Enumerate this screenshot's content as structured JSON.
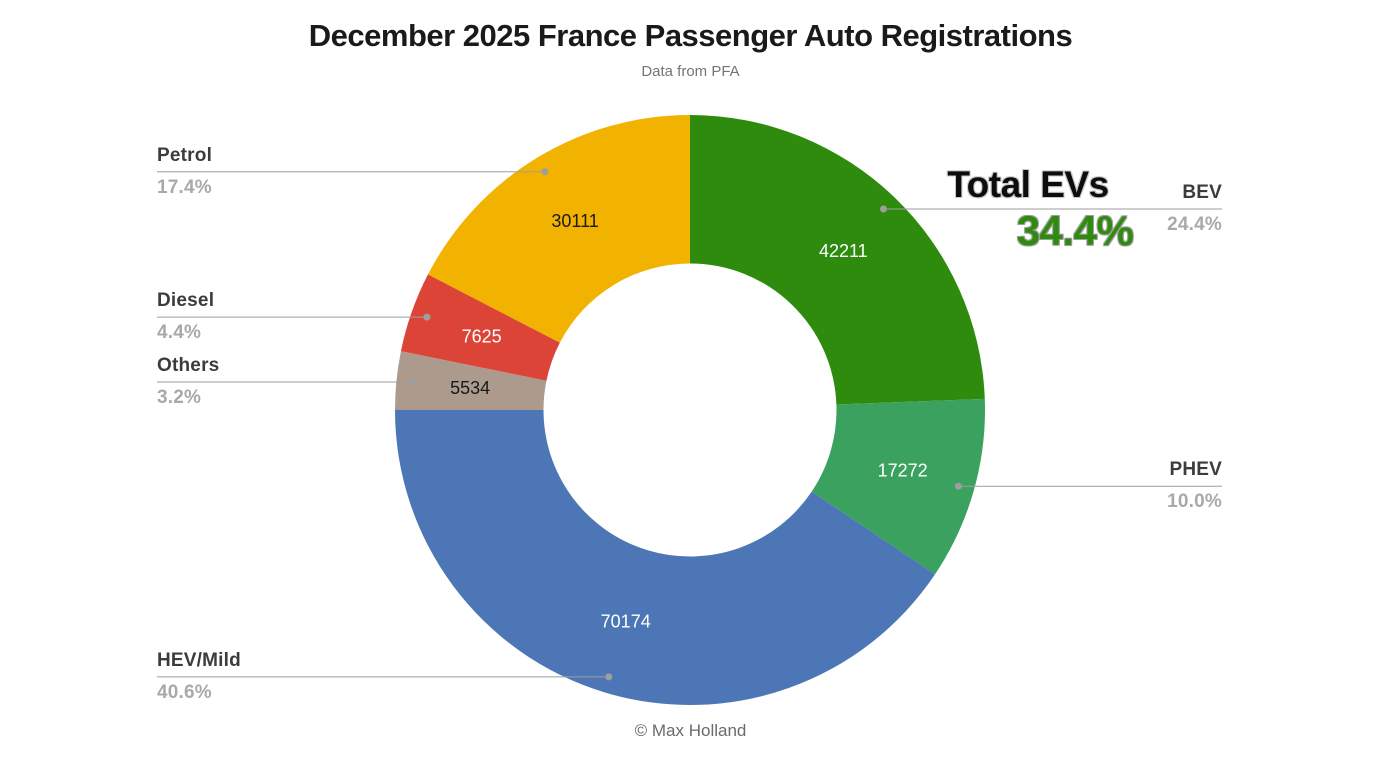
{
  "chart_data": {
    "type": "pie",
    "donut": true,
    "title": "December 2025 France Passenger Auto Registrations",
    "subtitle": "Data from PFA",
    "credit": "© Max Holland",
    "start_angle_deg": 0,
    "direction": "clockwise",
    "legend_position": "callout-labels",
    "annotation": {
      "label": "Total EVs",
      "pct": "34.4%",
      "color": "#2E8B0E"
    },
    "segments": [
      {
        "label": "BEV",
        "value": 42211,
        "pct": "24.4%",
        "pct_num": 24.4,
        "color": "#2E8B0E",
        "value_text_color": "#ffffff",
        "callout_side": "right"
      },
      {
        "label": "PHEV",
        "value": 17272,
        "pct": "10.0%",
        "pct_num": 10.0,
        "color": "#3AA25E",
        "value_text_color": "#ffffff",
        "callout_side": "right"
      },
      {
        "label": "HEV/Mild",
        "value": 70174,
        "pct": "40.6%",
        "pct_num": 40.6,
        "color": "#4C76B5",
        "value_text_color": "#ffffff",
        "callout_side": "left"
      },
      {
        "label": "Others",
        "value": 5534,
        "pct": "3.2%",
        "pct_num": 3.2,
        "color": "#AC9B8D",
        "value_text_color": "#1a1a1a",
        "callout_side": "left"
      },
      {
        "label": "Diesel",
        "value": 7625,
        "pct": "4.4%",
        "pct_num": 4.4,
        "color": "#DB4437",
        "value_text_color": "#ffffff",
        "callout_side": "left"
      },
      {
        "label": "Petrol",
        "value": 30111,
        "pct": "17.4%",
        "pct_num": 17.4,
        "color": "#F2B200",
        "value_text_color": "#1a1a1a",
        "callout_side": "left"
      }
    ],
    "style": {
      "callout_line_color": "#9e9e9e",
      "callout_name_color": "#3c3c3c",
      "callout_pct_color": "#a9a9a9",
      "title_color": "#1a1a1a",
      "subtitle_color": "#757575"
    }
  }
}
